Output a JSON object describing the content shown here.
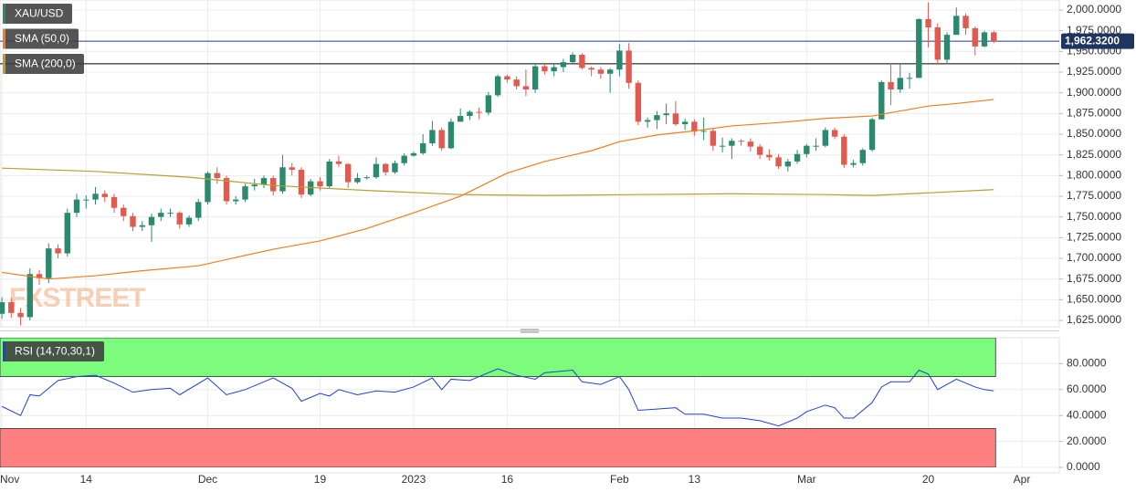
{
  "chart_data": [
    {
      "type": "candlestick",
      "xlim": [
        -0.2,
        113
      ],
      "ylim": [
        1617.3,
        2012.1
      ],
      "yticks": [
        {
          "value": 1625,
          "label": "1,625.0000"
        },
        {
          "value": 1650,
          "label": "1,650.0000"
        },
        {
          "value": 1675,
          "label": "1,675.0000"
        },
        {
          "value": 1700,
          "label": "1,700.0000"
        },
        {
          "value": 1725,
          "label": "1,725.0000"
        },
        {
          "value": 1750,
          "label": "1,750.0000"
        },
        {
          "value": 1775,
          "label": "1,775.0000"
        },
        {
          "value": 1800,
          "label": "1,800.0000"
        },
        {
          "value": 1825,
          "label": "1,825.0000"
        },
        {
          "value": 1850,
          "label": "1,850.0000"
        },
        {
          "value": 1875,
          "label": "1,875.0000"
        },
        {
          "value": 1900,
          "label": "1,900.0000"
        },
        {
          "value": 1925,
          "label": "1,925.0000"
        },
        {
          "value": 1950,
          "label": "1,950.0000"
        },
        {
          "value": 1975,
          "label": "1,975.0000"
        },
        {
          "value": 2000,
          "label": "2,000.0000"
        }
      ],
      "grid": true,
      "watermark": "FXSTREET",
      "reference_lines": [
        {
          "value": 1962.32,
          "color": "#1f3f8f"
        },
        {
          "value": 1935,
          "color": "#000000"
        }
      ],
      "last_price_label": "1,962.3200",
      "series": [
        {
          "name": "XAU/USD",
          "color": "#2b8a6e",
          "color_down": "#e05a4f",
          "open": [
            1633,
            1647,
            1634,
            1629,
            1681,
            1676,
            1712,
            1706,
            1755,
            1771,
            1771,
            1778,
            1774,
            1761,
            1751,
            1738,
            1740,
            1750,
            1755,
            1755,
            1741,
            1749,
            1768,
            1803,
            1797,
            1769,
            1771,
            1787,
            1789,
            1797,
            1781,
            1810,
            1807,
            1777,
            1793,
            1787,
            1817,
            1814,
            1792,
            1797,
            1798,
            1814,
            1804,
            1815,
            1824,
            1827,
            1839,
            1855,
            1833,
            1865,
            1872,
            1877,
            1876,
            1897,
            1920,
            1916,
            1908,
            1904,
            1932,
            1926,
            1931,
            1937,
            1946,
            1930,
            1928,
            1923,
            1928,
            1951,
            1912,
            1865,
            1867,
            1873,
            1875,
            1862,
            1865,
            1853,
            1854,
            1836,
            1836,
            1842,
            1841,
            1835,
            1825,
            1822,
            1811,
            1817,
            1826,
            1836,
            1836,
            1855,
            1847,
            1813,
            1815,
            1831,
            1868,
            1913,
            1904,
            1918,
            1918,
            1989,
            1979,
            1940,
            1970,
            1993,
            1978,
            1956,
            1973
          ],
          "high": [
            1653,
            1652,
            1640,
            1688,
            1686,
            1718,
            1717,
            1760,
            1778,
            1776,
            1786,
            1782,
            1778,
            1765,
            1755,
            1745,
            1754,
            1760,
            1760,
            1757,
            1752,
            1772,
            1805,
            1810,
            1800,
            1775,
            1790,
            1796,
            1800,
            1800,
            1825,
            1815,
            1810,
            1796,
            1798,
            1820,
            1824,
            1815,
            1803,
            1800,
            1822,
            1815,
            1818,
            1827,
            1829,
            1850,
            1866,
            1858,
            1869,
            1881,
            1879,
            1882,
            1901,
            1922,
            1922,
            1920,
            1928,
            1936,
            1934,
            1935,
            1941,
            1949,
            1948,
            1932,
            1931,
            1930,
            1959,
            1960,
            1915,
            1870,
            1878,
            1887,
            1890,
            1869,
            1868,
            1870,
            1857,
            1846,
            1845,
            1844,
            1845,
            1838,
            1832,
            1826,
            1820,
            1831,
            1838,
            1845,
            1858,
            1858,
            1850,
            1819,
            1833,
            1870,
            1915,
            1936,
            1935,
            1924,
            1990,
            2009,
            1984,
            1973,
            2003,
            1996,
            1980,
            1975,
            1975
          ],
          "low": [
            1627,
            1628,
            1619,
            1625,
            1668,
            1670,
            1700,
            1702,
            1750,
            1760,
            1765,
            1768,
            1755,
            1745,
            1733,
            1733,
            1720,
            1745,
            1750,
            1736,
            1738,
            1745,
            1765,
            1790,
            1765,
            1765,
            1768,
            1782,
            1785,
            1776,
            1778,
            1800,
            1773,
            1775,
            1782,
            1785,
            1810,
            1785,
            1790,
            1795,
            1796,
            1800,
            1802,
            1812,
            1823,
            1825,
            1836,
            1830,
            1832,
            1865,
            1867,
            1868,
            1873,
            1895,
            1912,
            1904,
            1896,
            1900,
            1922,
            1920,
            1925,
            1934,
            1928,
            1920,
            1917,
            1900,
            1920,
            1905,
            1861,
            1858,
            1856,
            1862,
            1860,
            1855,
            1848,
            1843,
            1830,
            1828,
            1820,
            1836,
            1829,
            1820,
            1818,
            1808,
            1805,
            1814,
            1822,
            1830,
            1834,
            1844,
            1809,
            1810,
            1812,
            1829,
            1868,
            1885,
            1900,
            1905,
            1918,
            1955,
            1934,
            1935,
            1970,
            1970,
            1945,
            1955,
            1960
          ],
          "close": [
            1647,
            1634,
            1629,
            1681,
            1676,
            1712,
            1706,
            1755,
            1771,
            1771,
            1778,
            1774,
            1761,
            1751,
            1738,
            1740,
            1750,
            1755,
            1755,
            1741,
            1749,
            1768,
            1803,
            1797,
            1769,
            1771,
            1787,
            1789,
            1797,
            1781,
            1810,
            1807,
            1777,
            1793,
            1787,
            1817,
            1814,
            1792,
            1797,
            1798,
            1814,
            1804,
            1815,
            1824,
            1827,
            1839,
            1855,
            1833,
            1865,
            1872,
            1877,
            1876,
            1897,
            1920,
            1916,
            1908,
            1904,
            1932,
            1926,
            1931,
            1937,
            1946,
            1930,
            1928,
            1923,
            1928,
            1951,
            1912,
            1865,
            1867,
            1873,
            1875,
            1862,
            1865,
            1853,
            1854,
            1836,
            1836,
            1842,
            1841,
            1835,
            1825,
            1822,
            1811,
            1817,
            1826,
            1836,
            1836,
            1855,
            1847,
            1813,
            1815,
            1831,
            1868,
            1913,
            1904,
            1918,
            1918,
            1989,
            1979,
            1940,
            1970,
            1993,
            1978,
            1956,
            1973,
            1962.32
          ]
        },
        {
          "name": "SMA (50,0)",
          "color": "#f07d1f",
          "x": [
            0,
            5,
            10,
            15,
            21,
            29,
            34,
            39,
            44,
            49,
            54,
            58,
            63,
            66,
            70,
            74,
            78,
            83,
            88,
            93,
            97,
            99,
            102,
            106
          ],
          "values": [
            1683,
            1675,
            1679,
            1685,
            1691,
            1711,
            1721,
            1736,
            1755,
            1775,
            1803,
            1817,
            1830,
            1841,
            1849,
            1854,
            1860,
            1864,
            1869,
            1872,
            1880,
            1884,
            1887,
            1892
          ]
        },
        {
          "name": "SMA (200,0)",
          "color": "#b5a12e",
          "x": [
            0,
            10,
            20,
            29,
            39,
            49,
            58,
            68,
            78,
            88,
            93,
            97,
            106
          ],
          "values": [
            1809,
            1805,
            1798,
            1788,
            1782,
            1777,
            1776,
            1777,
            1778,
            1777,
            1776,
            1778,
            1783
          ]
        }
      ]
    },
    {
      "type": "line",
      "xlim": [
        -0.2,
        113
      ],
      "ylim": [
        0,
        100
      ],
      "yticks": [
        {
          "value": 0,
          "label": "0.0000"
        },
        {
          "value": 20,
          "label": "20.0000"
        },
        {
          "value": 40,
          "label": "40.0000"
        },
        {
          "value": 60,
          "label": "60.0000"
        },
        {
          "value": 80,
          "label": "80.0000"
        }
      ],
      "xticks": [
        {
          "value": 0,
          "label": "Nov"
        },
        {
          "value": 9,
          "label": "14"
        },
        {
          "value": 22,
          "label": "Dec"
        },
        {
          "value": 34,
          "label": "19"
        },
        {
          "value": 44,
          "label": "2023"
        },
        {
          "value": 54,
          "label": "16"
        },
        {
          "value": 66,
          "label": "Feb"
        },
        {
          "value": 74,
          "label": "13"
        },
        {
          "value": 86,
          "label": "Mar"
        },
        {
          "value": 99,
          "label": "20"
        },
        {
          "value": 109,
          "label": "Apr"
        }
      ],
      "grid": true,
      "bands": [
        {
          "range": [
            70,
            100
          ],
          "color": "#7dfb7d"
        },
        {
          "range": [
            0,
            30
          ],
          "color": "#ff8080"
        }
      ],
      "series": [
        {
          "name": "RSI (14,70,30,1)",
          "color": "#2040d8",
          "x": [
            0,
            2,
            3,
            4,
            6,
            8,
            10,
            12,
            14,
            16,
            18,
            19,
            22,
            24,
            26,
            29,
            31,
            32,
            34,
            35,
            36,
            38,
            40,
            42,
            44,
            46,
            47,
            48,
            50,
            52,
            53,
            55,
            57,
            58,
            61,
            62,
            64,
            66,
            67,
            68,
            70,
            72,
            73,
            75,
            77,
            79,
            81,
            83,
            85,
            86,
            88,
            89,
            90,
            91,
            93,
            94,
            95,
            97,
            98,
            99,
            100,
            102,
            104,
            105,
            106
          ],
          "values": [
            47,
            40,
            56,
            55,
            67,
            70,
            71,
            65,
            58,
            60,
            61,
            56,
            69,
            56,
            60,
            69,
            61,
            51,
            57,
            55,
            60,
            56,
            59,
            58,
            62,
            69,
            60,
            68,
            67,
            73,
            76,
            71,
            68,
            73,
            75,
            66,
            64,
            70,
            60,
            44,
            45,
            46,
            41,
            41,
            38,
            38,
            36,
            32,
            38,
            43,
            48,
            46,
            38,
            38,
            50,
            62,
            66,
            66,
            75,
            72,
            60,
            68,
            62,
            60,
            59
          ]
        }
      ]
    }
  ]
}
